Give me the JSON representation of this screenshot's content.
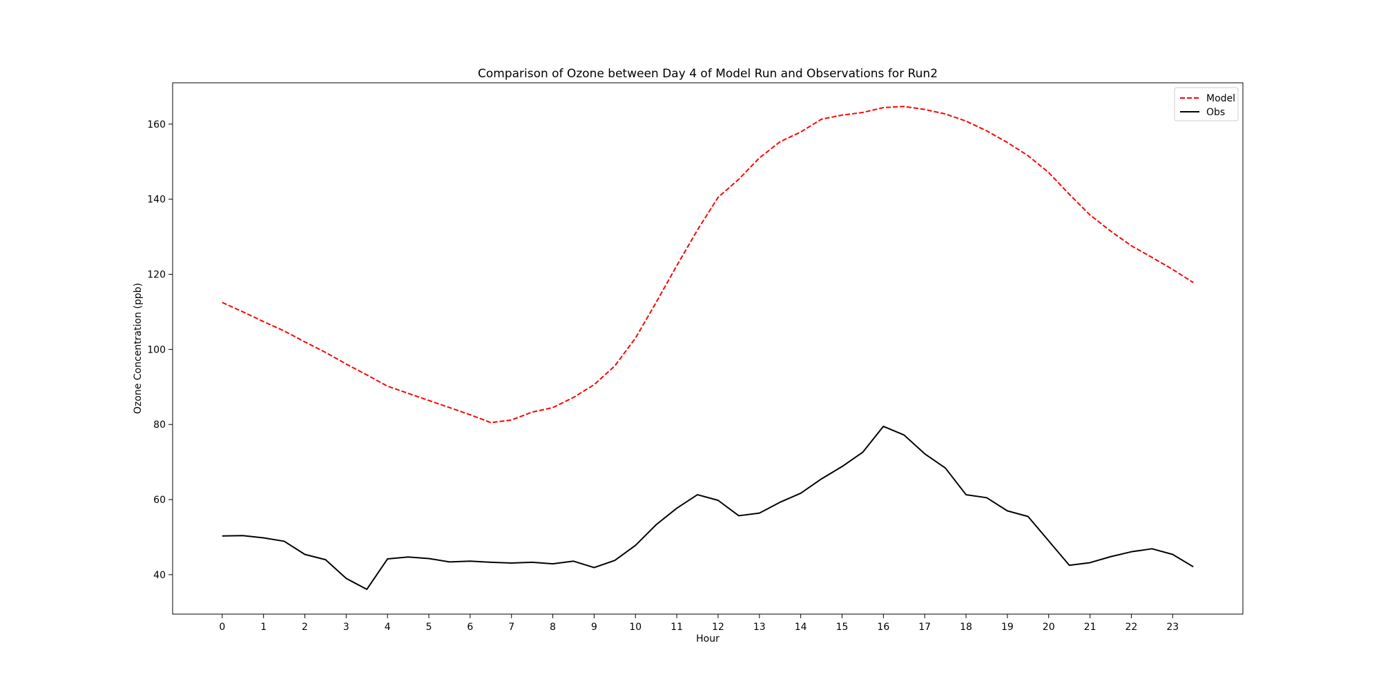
{
  "chart_data": {
    "type": "line",
    "title": "Comparison of Ozone between Day 4 of Model Run and Observations for Run2",
    "xlabel": "Hour",
    "ylabel": "Ozone Concentration (ppb)",
    "xlim": [
      -1.2,
      24.7
    ],
    "ylim": [
      29.5,
      171
    ],
    "xticks": [
      0,
      1,
      2,
      3,
      4,
      5,
      6,
      7,
      8,
      9,
      10,
      11,
      12,
      13,
      14,
      15,
      16,
      17,
      18,
      19,
      20,
      21,
      22,
      23
    ],
    "yticks": [
      40,
      60,
      80,
      100,
      120,
      140,
      160
    ],
    "grid": false,
    "legend_position": "top-right",
    "x": [
      0,
      0.5,
      1,
      1.5,
      2,
      2.5,
      3,
      3.5,
      4,
      4.5,
      5,
      5.5,
      6,
      6.5,
      7,
      7.5,
      8,
      8.5,
      9,
      9.5,
      10,
      10.5,
      11,
      11.5,
      12,
      12.5,
      13,
      13.5,
      14,
      14.5,
      15,
      15.5,
      16,
      16.5,
      17,
      17.5,
      18,
      18.5,
      19,
      19.5,
      20,
      20.5,
      21,
      21.5,
      22,
      22.5,
      23,
      23.5
    ],
    "series": [
      {
        "name": "Model",
        "color": "#ff0000",
        "style": "dashed",
        "values": [
          112.5,
          110.0,
          107.4,
          104.9,
          102.0,
          99.2,
          96.1,
          93.2,
          90.2,
          88.3,
          86.4,
          84.5,
          82.6,
          80.5,
          81.2,
          83.3,
          84.5,
          87.2,
          90.6,
          95.6,
          103.0,
          112.5,
          122.3,
          131.8,
          140.5,
          145.3,
          151.0,
          155.3,
          157.9,
          161.3,
          162.4,
          163.1,
          164.4,
          164.7,
          163.9,
          162.7,
          160.8,
          158.2,
          155.1,
          151.6,
          147.1,
          141.3,
          135.8,
          131.5,
          127.6,
          124.5,
          121.3,
          117.8
        ]
      },
      {
        "name": "Obs",
        "color": "#000000",
        "style": "solid",
        "values": [
          50.3,
          50.4,
          49.8,
          48.9,
          45.4,
          44.0,
          39.0,
          36.1,
          44.2,
          44.7,
          44.3,
          43.4,
          43.6,
          43.3,
          43.1,
          43.3,
          42.9,
          43.6,
          41.9,
          43.8,
          47.8,
          53.3,
          57.7,
          61.3,
          59.8,
          55.7,
          56.4,
          59.3,
          61.7,
          65.5,
          68.8,
          72.6,
          79.5,
          77.2,
          72.2,
          68.4,
          61.3,
          60.5,
          57.0,
          55.5,
          49.0,
          42.5,
          43.2,
          44.8,
          46.1,
          46.9,
          45.4,
          42.1
        ]
      }
    ]
  }
}
